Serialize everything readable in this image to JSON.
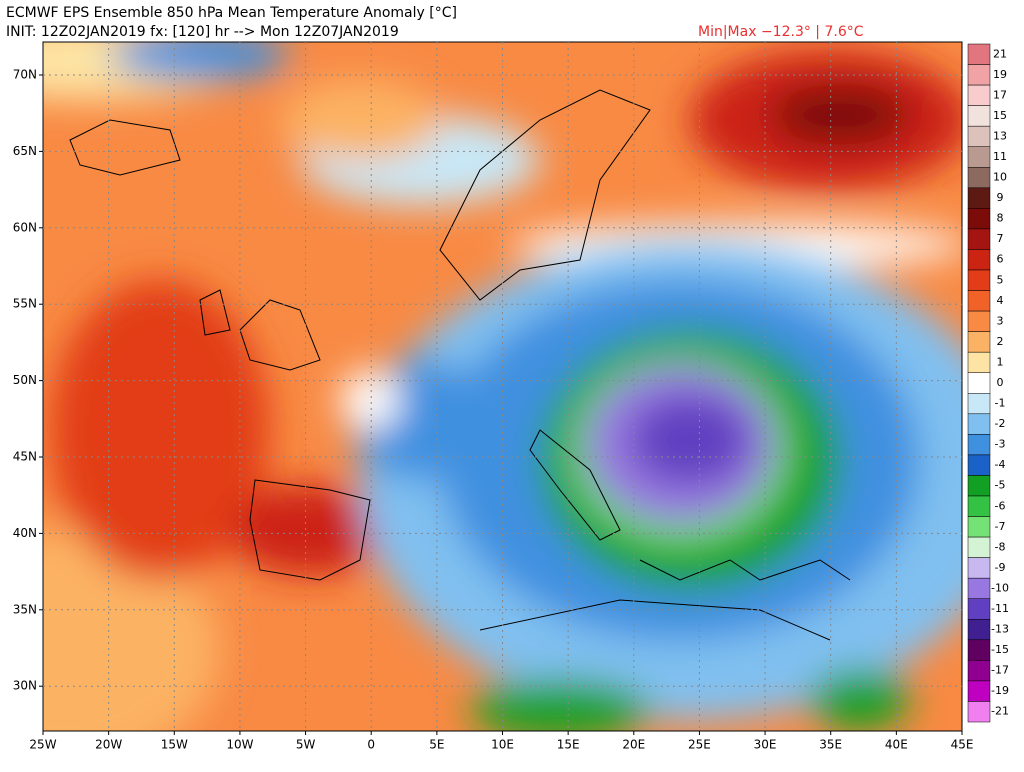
{
  "header": {
    "title": "ECMWF EPS Ensemble 850 hPa Mean Temperature Anomaly [°C]",
    "subtitle": "INIT: 12Z02JAN2019 fx: [120] hr --> Mon 12Z07JAN2019",
    "minmax": "Min|Max −12.3° | 7.6°C"
  },
  "lat_labels": [
    "70N",
    "65N",
    "60N",
    "55N",
    "50N",
    "45N",
    "40N",
    "35N",
    "30N"
  ],
  "lon_labels": [
    "25W",
    "20W",
    "15W",
    "10W",
    "5W",
    "0",
    "5E",
    "10E",
    "15E",
    "20E",
    "25E",
    "30E",
    "35E",
    "40E",
    "45E"
  ],
  "colorbar": [
    {
      "label": "21",
      "color": "#e2767e"
    },
    {
      "label": "19",
      "color": "#f0a2a4"
    },
    {
      "label": "17",
      "color": "#f8cccc"
    },
    {
      "label": "15",
      "color": "#f2e2de"
    },
    {
      "label": "13",
      "color": "#dcc2ba"
    },
    {
      "label": "11",
      "color": "#b89a90"
    },
    {
      "label": "10",
      "color": "#8c6a60"
    },
    {
      "label": "9",
      "color": "#5c1a12"
    },
    {
      "label": "8",
      "color": "#7c0c0a"
    },
    {
      "label": "7",
      "color": "#a41410"
    },
    {
      "label": "6",
      "color": "#cc2412"
    },
    {
      "label": "5",
      "color": "#e23c18"
    },
    {
      "label": "4",
      "color": "#f06228"
    },
    {
      "label": "3",
      "color": "#f88a44"
    },
    {
      "label": "2",
      "color": "#fcb264"
    },
    {
      "label": "1",
      "color": "#fde4a4"
    },
    {
      "label": "0",
      "color": "#ffffff"
    },
    {
      "label": "-1",
      "color": "#c8e8f8"
    },
    {
      "label": "-2",
      "color": "#80c0f0"
    },
    {
      "label": "-3",
      "color": "#4090e0"
    },
    {
      "label": "-4",
      "color": "#1a62c8"
    },
    {
      "label": "-5",
      "color": "#12a024"
    },
    {
      "label": "-6",
      "color": "#34c244"
    },
    {
      "label": "-7",
      "color": "#74e274"
    },
    {
      "label": "-8",
      "color": "#d4f2d4"
    },
    {
      "label": "-9",
      "color": "#c8b8f0"
    },
    {
      "label": "-10",
      "color": "#9878e0"
    },
    {
      "label": "-11",
      "color": "#6040c0"
    },
    {
      "label": "-13",
      "color": "#402090"
    },
    {
      "label": "-15",
      "color": "#600060"
    },
    {
      "label": "-17",
      "color": "#900090"
    },
    {
      "label": "-19",
      "color": "#c000c0"
    },
    {
      "label": "-21",
      "color": "#f080f0"
    }
  ]
}
